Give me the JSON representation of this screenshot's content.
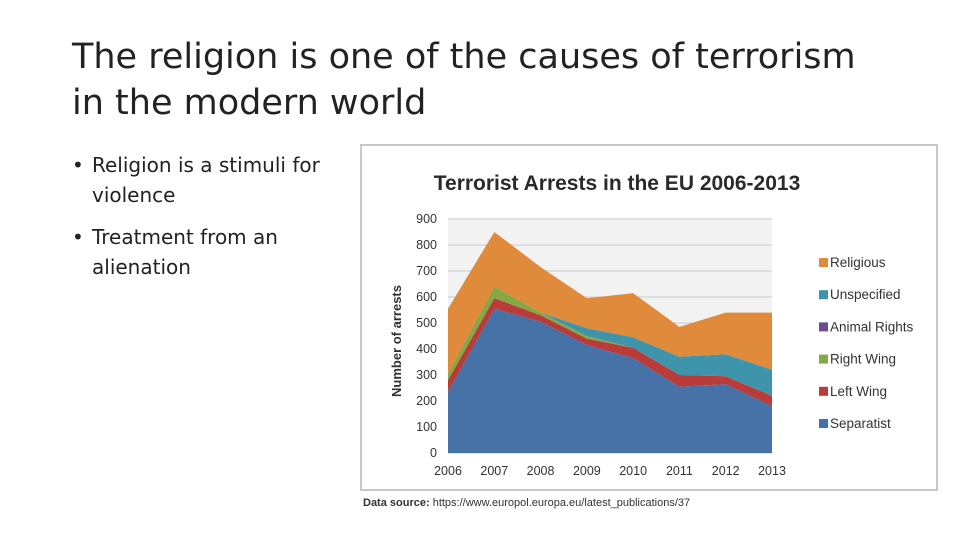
{
  "slide": {
    "title": "The religion is one of the causes of terrorism in the modern world",
    "bullets": [
      "Religion is a stimuli for violence",
      "Treatment from an alienation"
    ],
    "bullet_glyph": "•"
  },
  "source": {
    "label": "Data source:",
    "url": "https://www.europol.europa.eu/latest_publications/37"
  },
  "chart_data": {
    "type": "area",
    "stacked": true,
    "title": "Terrorist Arrests in the EU 2006-2013",
    "xlabel": "",
    "ylabel": "Number of arrests",
    "x": [
      "2006",
      "2007",
      "2008",
      "2009",
      "2010",
      "2011",
      "2012",
      "2013"
    ],
    "ylim": [
      0,
      900
    ],
    "yticks": [
      0,
      100,
      200,
      300,
      400,
      500,
      600,
      700,
      800,
      900
    ],
    "grid": true,
    "legend_position": "right",
    "series": [
      {
        "name": "Separatist",
        "color": "#4672a8",
        "values": [
          235,
          555,
          505,
          415,
          365,
          255,
          265,
          180
        ]
      },
      {
        "name": "Left Wing",
        "color": "#b93b3a",
        "values": [
          45,
          40,
          25,
          25,
          40,
          45,
          30,
          40
        ]
      },
      {
        "name": "Right Wing",
        "color": "#86a844",
        "values": [
          25,
          45,
          10,
          10,
          0,
          0,
          0,
          0
        ]
      },
      {
        "name": "Animal Rights",
        "color": "#6b4c8e",
        "values": [
          0,
          0,
          0,
          0,
          0,
          0,
          0,
          0
        ]
      },
      {
        "name": "Unspecified",
        "color": "#3d94ab",
        "values": [
          0,
          0,
          0,
          30,
          40,
          70,
          85,
          100
        ]
      },
      {
        "name": "Religious",
        "color": "#e08a3c",
        "values": [
          250,
          210,
          175,
          115,
          170,
          115,
          160,
          220
        ]
      }
    ],
    "colors": {
      "grid": "#c9c9c9",
      "plot_bg": "#f2f2f2",
      "text": "#333333",
      "title": "#2a2a2a"
    }
  }
}
